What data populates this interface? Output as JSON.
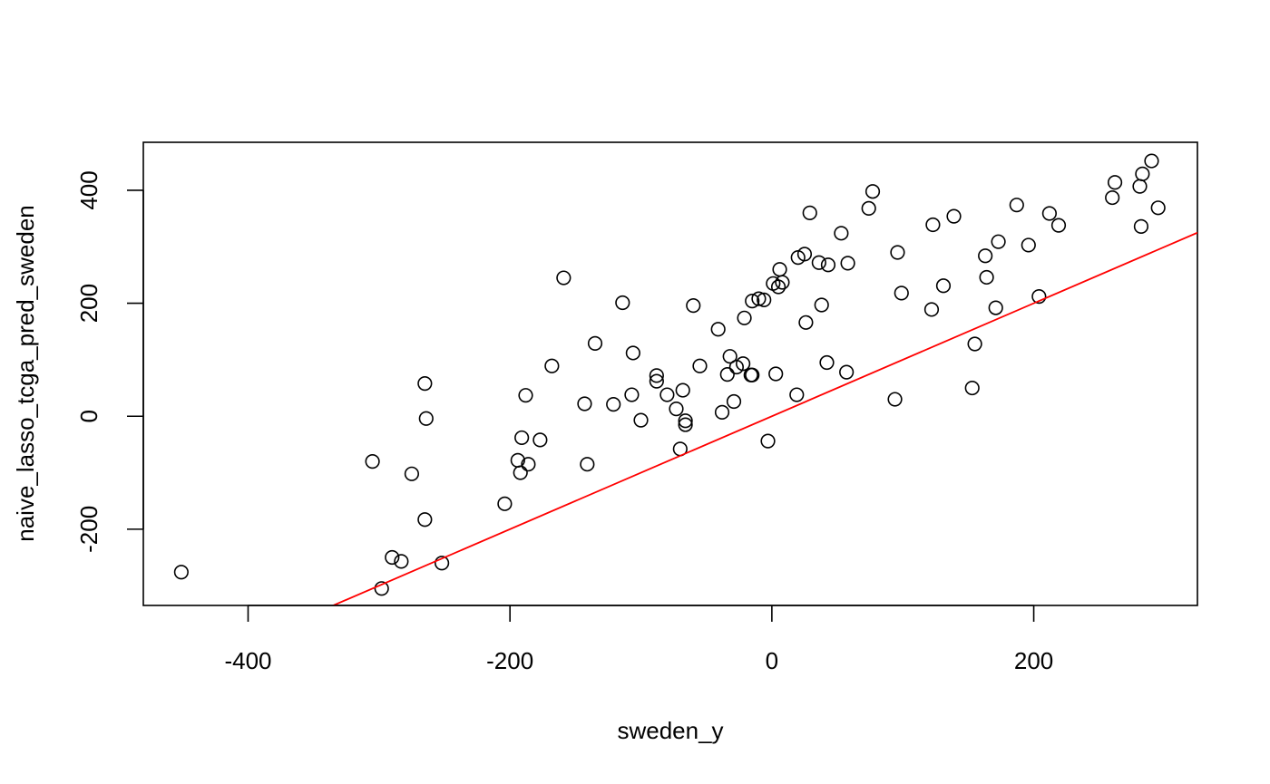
{
  "chart_data": {
    "type": "scatter",
    "xlabel": "sweden_y",
    "ylabel": "naive_lasso_tcga_pred_sweden",
    "xlim": [
      -480,
      325
    ],
    "ylim": [
      -335,
      485
    ],
    "x_ticks": [
      -400,
      -200,
      0,
      200
    ],
    "y_ticks": [
      -200,
      0,
      200,
      400
    ],
    "x_tick_labels": [
      "-400",
      "-200",
      "0",
      "200"
    ],
    "y_tick_labels": [
      "-200",
      "0",
      "200",
      "400"
    ],
    "grid": false,
    "reference_line": {
      "slope": 1,
      "intercept": 0,
      "color": "#ff0000"
    },
    "point_color": "#000000",
    "points": [
      [
        -451,
        -276
      ],
      [
        -305,
        -80
      ],
      [
        -298,
        -305
      ],
      [
        -290,
        -250
      ],
      [
        -283,
        -257
      ],
      [
        -275,
        -102
      ],
      [
        -265,
        58
      ],
      [
        -264,
        -4
      ],
      [
        -265,
        -183
      ],
      [
        -252,
        -260
      ],
      [
        -204,
        -155
      ],
      [
        -194,
        -78
      ],
      [
        -192,
        -100
      ],
      [
        -191,
        -38
      ],
      [
        -188,
        37
      ],
      [
        -186,
        -85
      ],
      [
        -177,
        -42
      ],
      [
        -168,
        89
      ],
      [
        -159,
        245
      ],
      [
        -143,
        22
      ],
      [
        -141,
        -85
      ],
      [
        -135,
        129
      ],
      [
        -121,
        21
      ],
      [
        -114,
        201
      ],
      [
        -106,
        112
      ],
      [
        -107,
        38
      ],
      [
        -100,
        -7
      ],
      [
        -88,
        72
      ],
      [
        -88,
        62
      ],
      [
        -80,
        38
      ],
      [
        -73,
        13
      ],
      [
        -70,
        -58
      ],
      [
        -68,
        46
      ],
      [
        -66,
        -8
      ],
      [
        -66,
        -15
      ],
      [
        -60,
        196
      ],
      [
        -55,
        89
      ],
      [
        -41,
        154
      ],
      [
        -38,
        7
      ],
      [
        -34,
        74
      ],
      [
        -32,
        106
      ],
      [
        -29,
        26
      ],
      [
        -27,
        87
      ],
      [
        -22,
        93
      ],
      [
        -21,
        174
      ],
      [
        -16,
        73
      ],
      [
        -15,
        73
      ],
      [
        -15,
        204
      ],
      [
        -10,
        208
      ],
      [
        -6,
        206
      ],
      [
        -3,
        -44
      ],
      [
        1,
        235
      ],
      [
        3,
        75
      ],
      [
        5,
        229
      ],
      [
        6,
        260
      ],
      [
        8,
        237
      ],
      [
        19,
        38
      ],
      [
        20,
        281
      ],
      [
        25,
        287
      ],
      [
        26,
        166
      ],
      [
        29,
        360
      ],
      [
        36,
        272
      ],
      [
        38,
        197
      ],
      [
        42,
        95
      ],
      [
        43,
        268
      ],
      [
        53,
        324
      ],
      [
        57,
        78
      ],
      [
        58,
        271
      ],
      [
        74,
        368
      ],
      [
        77,
        398
      ],
      [
        94,
        30
      ],
      [
        96,
        290
      ],
      [
        99,
        218
      ],
      [
        122,
        189
      ],
      [
        123,
        339
      ],
      [
        131,
        231
      ],
      [
        139,
        354
      ],
      [
        153,
        50
      ],
      [
        155,
        128
      ],
      [
        163,
        284
      ],
      [
        164,
        246
      ],
      [
        171,
        192
      ],
      [
        173,
        309
      ],
      [
        187,
        374
      ],
      [
        196,
        303
      ],
      [
        204,
        212
      ],
      [
        212,
        359
      ],
      [
        219,
        338
      ],
      [
        260,
        387
      ],
      [
        262,
        414
      ],
      [
        281,
        407
      ],
      [
        282,
        336
      ],
      [
        283,
        429
      ],
      [
        290,
        452
      ],
      [
        295,
        369
      ]
    ]
  }
}
